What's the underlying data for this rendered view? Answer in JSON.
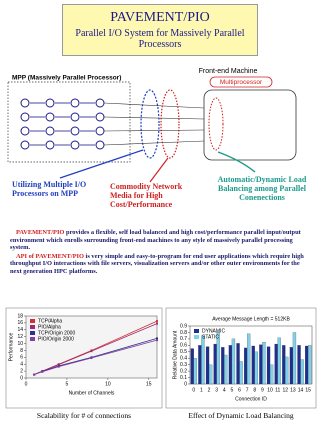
{
  "header": {
    "title": "PAVEMENT/PIO",
    "subtitle": "Parallel I/O System for Massively Parallel Processors"
  },
  "diagram": {
    "mpp_label": "MPP (Massively Parallel Processor)",
    "frontend_label": "Front-end Machine",
    "multiprocessor_label": "Multiprocessor",
    "captions": [
      "Utilizing Multiple I/O Processors on MPP",
      "Commodity Network Media for High Cost/Performance",
      "Automatic/Dynamic Load Balancing among Parallel Conenections"
    ]
  },
  "text": {
    "paragraphs": [
      {
        "lead": "PAVEMENT/PIO",
        "body": "provides a flexible, self load balanced and high cost/performance parallel input/output environment which enrolls surrounding front-end machines to any style of massively parallel processing system."
      },
      {
        "lead": "API of PAVEMENT/PIO",
        "body": "is very simple and easy-to-program for end user applications which require high throughput I/O interactions with file servers, visualization servers and/or other outer environments for the next generation HPC platforms."
      }
    ]
  },
  "chart_data": [
    {
      "type": "line",
      "xlabel": "Number of Channels",
      "ylabel": "Performance",
      "caption": "Scalability for # of connections",
      "x": [
        1,
        2,
        4,
        8,
        16
      ],
      "xlim": [
        0,
        16
      ],
      "xticks": [
        0,
        5,
        10,
        15
      ],
      "ylim": [
        0,
        18
      ],
      "yticks": [
        0,
        2,
        4,
        6,
        8,
        10,
        12,
        14,
        16,
        18
      ],
      "series": [
        {
          "name": "TCP/Alpha",
          "color": "#d03030",
          "values": [
            1,
            2,
            4,
            8,
            16.5
          ]
        },
        {
          "name": "PIO/Alpha",
          "color": "#a02870",
          "values": [
            1,
            2,
            3.9,
            7.8,
            15.8
          ]
        },
        {
          "name": "TCP/Origin 2000",
          "color": "#303090",
          "values": [
            1,
            1.9,
            3.5,
            6,
            11.5
          ]
        },
        {
          "name": "PIO/Origin 2000",
          "color": "#8040a0",
          "values": [
            1,
            1.8,
            3.3,
            5.8,
            11
          ]
        }
      ]
    },
    {
      "type": "bar",
      "title": "Average Message Length = 512KB",
      "xlabel": "Connection ID",
      "ylabel": "Relative Data Amount",
      "caption": "Effect of Dynamic Load Balancing",
      "categories": [
        "0",
        "1",
        "2",
        "3",
        "4",
        "5",
        "6",
        "7",
        "8",
        "9",
        "10",
        "11",
        "12",
        "13",
        "14",
        "15"
      ],
      "ylim": [
        0,
        0.9
      ],
      "yticks": [
        0,
        0.1,
        0.2,
        0.3,
        0.4,
        0.5,
        0.6,
        0.7,
        0.8,
        0.9
      ],
      "series": [
        {
          "name": "DYNAMIC",
          "color": "#1f2f8f",
          "values": [
            0.55,
            0.6,
            0.58,
            0.62,
            0.57,
            0.6,
            0.63,
            0.56,
            0.59,
            0.61,
            0.58,
            0.62,
            0.6,
            0.57,
            0.6,
            0.59
          ]
        },
        {
          "name": "STATIC",
          "color": "#7fd0e8",
          "values": [
            0.4,
            0.75,
            0.3,
            0.8,
            0.45,
            0.7,
            0.35,
            0.78,
            0.5,
            0.65,
            0.3,
            0.72,
            0.42,
            0.8,
            0.38,
            0.6
          ]
        }
      ]
    }
  ]
}
